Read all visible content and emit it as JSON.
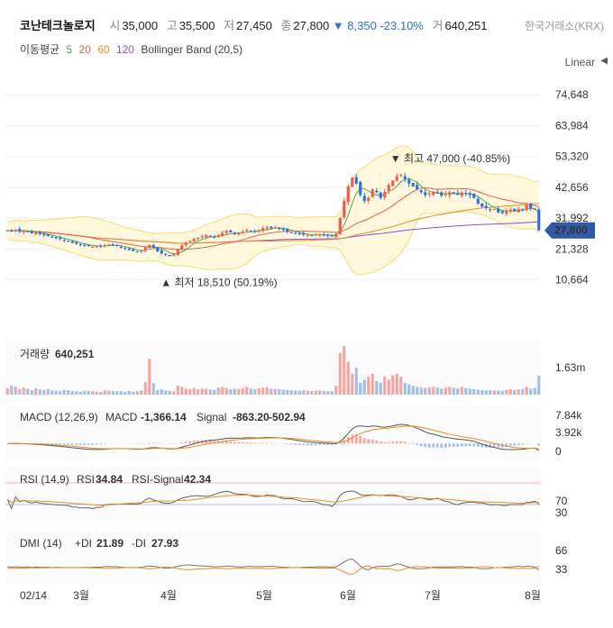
{
  "header": {
    "name": "코난테크놀로지",
    "open_label": "시",
    "open": "35,000",
    "high_label": "고",
    "high": "35,500",
    "low_label": "저",
    "low": "27,450",
    "close_label": "종",
    "close": "27,800",
    "change": "▼ 8,350",
    "change_pct": "-23.10%",
    "volume_label": "거",
    "volume": "640,251",
    "exchange": "한국거래소(KRX)"
  },
  "indicators": {
    "ma_label": "이동평균",
    "ma_periods": [
      "5",
      "20",
      "60",
      "120"
    ],
    "ma_colors": [
      "#4caf50",
      "#f05a4f",
      "#f08c1e",
      "#8a4fd8"
    ],
    "bollinger": "Bollinger Band (20,5)"
  },
  "scale_label": "Linear",
  "chevron_icon": "chevron-left-icon",
  "colors": {
    "up": "#f05a4f",
    "down": "#2f6fe0",
    "band_fill": "#fff8dc",
    "band_line": "#f7dc6f"
  },
  "chart_data": [
    {
      "type": "candlestick",
      "name": "price",
      "y_ticks": [
        "74,648",
        "63,984",
        "53,320",
        "42,656",
        "31,992",
        "21,328",
        "10,664"
      ],
      "ylim": [
        0,
        80000
      ],
      "x_labels": [
        "02/14",
        "3월",
        "4월",
        "5월",
        "6월",
        "7월",
        "8월"
      ],
      "current_price_tag": "27,800",
      "annotations": {
        "high_text": "▼ 최고 47,000 (-40.85%)",
        "low_text": "▲ 최저 18,510 (50.19%)"
      },
      "closes": [
        27800,
        27500,
        28000,
        27400,
        27600,
        27200,
        26800,
        27000,
        26500,
        26200,
        25800,
        25500,
        25100,
        24800,
        24300,
        23900,
        23500,
        23200,
        22800,
        22600,
        22300,
        22100,
        22400,
        22200,
        22800,
        23000,
        22600,
        22400,
        21900,
        21500,
        21000,
        20700,
        20400,
        20600,
        22000,
        22800,
        21800,
        20600,
        19800,
        19300,
        18900,
        19600,
        21200,
        22600,
        23500,
        24200,
        24800,
        25200,
        25700,
        26100,
        25600,
        25300,
        26200,
        26900,
        27600,
        27100,
        26500,
        26900,
        27400,
        28000,
        27600,
        27200,
        27900,
        28600,
        29000,
        28500,
        28900,
        28300,
        28000,
        27400,
        27000,
        26700,
        26500,
        26300,
        26100,
        26000,
        26300,
        26500,
        26200,
        25900,
        25700,
        26600,
        32000,
        38000,
        43000,
        46000,
        44000,
        40000,
        38000,
        39000,
        42000,
        41000,
        39000,
        41000,
        43500,
        45000,
        46500,
        47000,
        45500,
        44000,
        43000,
        42000,
        41000,
        40000,
        40500,
        41200,
        40800,
        39800,
        40300,
        41000,
        40500,
        40200,
        40900,
        40500,
        40000,
        39000,
        37000,
        36000,
        35500,
        35000,
        35200,
        34000,
        33800,
        34500,
        35000,
        34600,
        35200,
        34800,
        36500,
        35500,
        35000,
        27800
      ],
      "volume": {
        "label": "거래량",
        "value": "640,251",
        "tick": "1.63m",
        "max": 1630000,
        "bars": [
          220,
          300,
          260,
          180,
          240,
          200,
          150,
          210,
          170,
          160,
          190,
          140,
          130,
          120,
          160,
          150,
          120,
          110,
          100,
          130,
          120,
          110,
          100,
          90,
          140,
          130,
          120,
          110,
          110,
          100,
          120,
          100,
          110,
          140,
          420,
          1200,
          380,
          150,
          180,
          140,
          130,
          110,
          300,
          260,
          200,
          180,
          220,
          180,
          200,
          190,
          170,
          160,
          230,
          260,
          220,
          180,
          200,
          190,
          220,
          260,
          200,
          180,
          210,
          230,
          240,
          200,
          190,
          180,
          170,
          160,
          150,
          140,
          130,
          140,
          130,
          120,
          130,
          140,
          120,
          110,
          110,
          300,
          1400,
          1630,
          1100,
          700,
          900,
          400,
          500,
          600,
          700,
          450,
          400,
          600,
          500,
          650,
          700,
          600,
          400,
          350,
          300,
          260,
          240,
          220,
          250,
          260,
          240,
          200,
          230,
          260,
          230,
          210,
          260,
          220,
          200,
          180,
          160,
          150,
          140,
          150,
          140,
          130,
          120,
          160,
          180,
          150,
          170,
          180,
          260,
          200,
          220,
          640
        ]
      },
      "macd": {
        "label": "MACD (12,26,9)",
        "macd_label": "MACD",
        "macd_value": "-1,366.14",
        "signal_label": "Signal",
        "signal_value": "-863.20",
        "hist_value": "-502.94",
        "ticks": [
          "7.84k",
          "3.92k",
          "0"
        ]
      },
      "rsi": {
        "label": "RSI (14,9)",
        "rsi_label": "RSI",
        "rsi_value": "34.84",
        "signal_label": "RSI-Signal",
        "signal_value": "42.34",
        "ticks": [
          "70",
          "30"
        ]
      },
      "dmi": {
        "label": "DMI (14)",
        "pdi_label": "+DI",
        "pdi_value": "21.89",
        "mdi_label": "-DI",
        "mdi_value": "27.93",
        "ticks": [
          "66",
          "33"
        ]
      }
    }
  ]
}
